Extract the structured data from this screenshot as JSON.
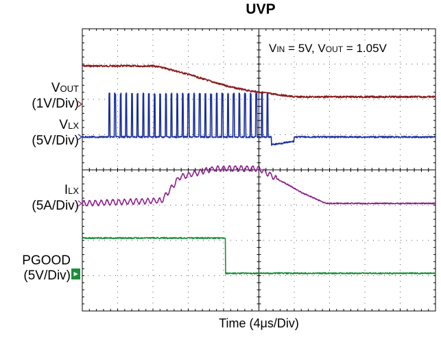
{
  "chart_data": {
    "type": "line",
    "title": "UVP",
    "xlabel": "Time (4μs/Div)",
    "ylabel": "",
    "x_unit_per_div": "4μs",
    "x_divisions": 10,
    "y_divisions": 8,
    "grid": true,
    "annotation": {
      "vin_name": "V",
      "vin_sub": "IN",
      "vin_value": " = 5V, ",
      "vout_name": "V",
      "vout_sub": "OUT",
      "vout_value": " = 1.05V"
    },
    "series": [
      {
        "name": "VOUT",
        "label_main": "V",
        "label_sub": "OUT",
        "scale": "(1V/Div)",
        "color": "#8b1a1a",
        "x": [
          0,
          4,
          4.3,
          5,
          6,
          6.8,
          7.8,
          8.6,
          9.3,
          10.0,
          10.8,
          12,
          14,
          16,
          18,
          20
        ],
        "y": [
          1.05,
          1.05,
          1.03,
          0.95,
          0.82,
          0.7,
          0.55,
          0.45,
          0.38,
          0.33,
          0.28,
          0.2,
          0.2,
          0.2,
          0.2,
          0.2
        ]
      },
      {
        "name": "VLX",
        "label_main": "V",
        "label_sub": "LX",
        "scale": "(5V/Div)",
        "color": "#1a2fa0",
        "x": [
          0,
          1.5,
          1.5,
          10.7,
          10.7,
          12,
          12,
          20
        ],
        "y": [
          0,
          0,
          5,
          5,
          0,
          0,
          0,
          0
        ],
        "switching_period_div": 0.32
      },
      {
        "name": "ILX",
        "label_main": "I",
        "label_sub": "LX",
        "scale": "(5A/Div)",
        "color": "#8e1f8e",
        "x": [
          0,
          4.5,
          5.5,
          6.0,
          7.3,
          7.5,
          9.4,
          10.0,
          11.4,
          12.5,
          13.8,
          16,
          20
        ],
        "y": [
          0,
          0.4,
          3.6,
          3.9,
          4.7,
          4.8,
          4.8,
          4.8,
          2.9,
          1.4,
          0,
          0,
          0
        ]
      },
      {
        "name": "PGOOD",
        "label_main": "PGOOD",
        "label_sub": "",
        "scale": "(5V/Div)",
        "color": "#1a8f3a",
        "x": [
          0,
          8.1,
          8.1,
          20
        ],
        "y": [
          5,
          5,
          0,
          0
        ]
      }
    ]
  }
}
